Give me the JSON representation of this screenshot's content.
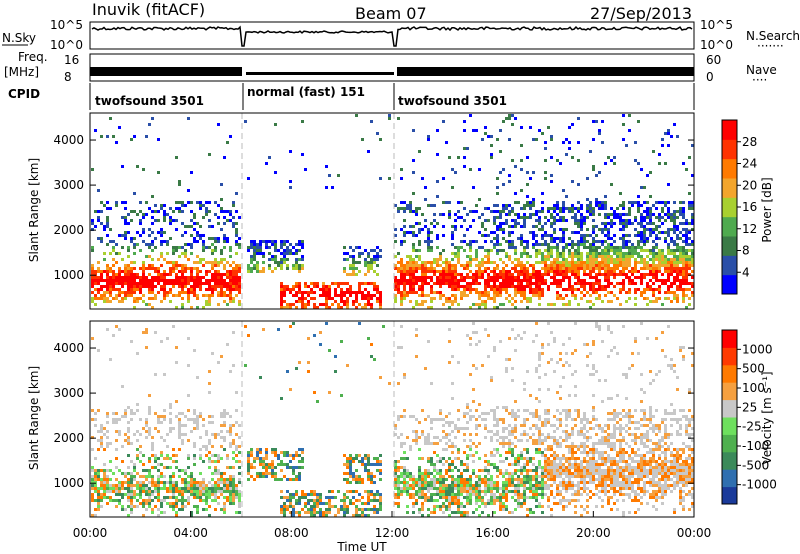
{
  "header": {
    "station": "Inuvik (fitACF)",
    "beam": "Beam 07",
    "date": "27/Sep/2013"
  },
  "top_panels": {
    "nsky_label": "N.Sky",
    "nsearch_label": "N.Search",
    "nsearch_marker": "·······",
    "nsky_ticks": [
      "10^5",
      "10^0"
    ],
    "nsearch_ticks": [
      "10^5",
      "10^0"
    ],
    "freq_label_line1": "Freq.",
    "freq_label_line2": "[MHz]",
    "freq_ticks": [
      "16",
      "8"
    ],
    "nave_label": "Nave",
    "nave_marker": "····",
    "nave_ticks": [
      "60",
      "0"
    ],
    "cpid_label": "CPID",
    "modes": [
      {
        "label": "twofsound 3501",
        "start_hour": 0,
        "end_hour": 6
      },
      {
        "label": "normal (fast) 151",
        "start_hour": 6,
        "end_hour": 12
      },
      {
        "label": "twofsound 3501",
        "start_hour": 12,
        "end_hour": 24
      }
    ]
  },
  "colors": {
    "power_scale": [
      "#0000ff",
      "#2a4fa8",
      "#3a7a46",
      "#4faa4f",
      "#a8d030",
      "#f3a52c",
      "#ff7a00",
      "#ff3300",
      "#ff0000"
    ],
    "velocity_scale": [
      "#1a3a9a",
      "#2f6fb0",
      "#3b8a5a",
      "#4fb04f",
      "#6ee05e",
      "#c8c8c8",
      "#f5a040",
      "#ff7a00",
      "#ff3a00",
      "#ff0000"
    ]
  },
  "chart_data": [
    {
      "type": "heatmap",
      "name": "power",
      "ylabel": "Slant Range [km]",
      "yticks": [
        "1000",
        "2000",
        "3000",
        "4000"
      ],
      "ylim": [
        250,
        4600
      ],
      "xlim": [
        0,
        24
      ],
      "colorbar_label": "Power [dB]",
      "colorbar_ticks": [
        "4",
        "8",
        "12",
        "16",
        "20",
        "24",
        "28"
      ],
      "colorbar_range": [
        0,
        32
      ],
      "dashed_lines_hours": [
        6,
        12
      ]
    },
    {
      "type": "heatmap",
      "name": "velocity",
      "ylabel": "Slant Range [km]",
      "yticks": [
        "1000",
        "2000",
        "3000",
        "4000"
      ],
      "ylim": [
        250,
        4600
      ],
      "xlim": [
        0,
        24
      ],
      "colorbar_label": "Velocity [m s⁻¹]",
      "colorbar_ticks": [
        "1000",
        "500",
        "100",
        "25",
        "-25",
        "-100",
        "-500",
        "-1000"
      ],
      "xlabel": "Time UT",
      "xticks": [
        "00:00",
        "04:00",
        "08:00",
        "12:00",
        "16:00",
        "20:00",
        "00:00"
      ],
      "dashed_lines_hours": [
        6,
        12
      ]
    }
  ]
}
